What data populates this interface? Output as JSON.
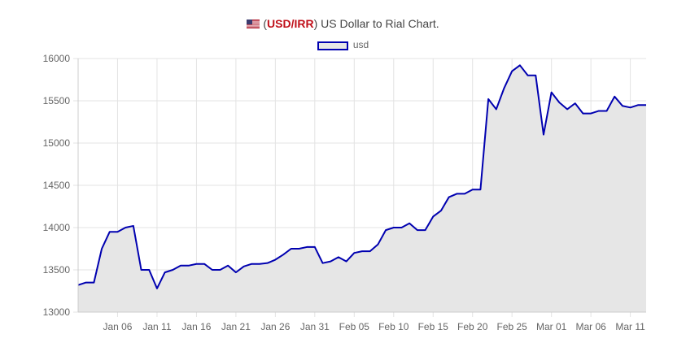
{
  "title": {
    "flag_icon": "us-flag-icon",
    "prefix": "(",
    "code": "USD/IRR",
    "suffix": ") US Dollar to Rial Chart."
  },
  "legend": {
    "label": "usd"
  },
  "colors": {
    "line": "#0000b0",
    "fill": "#e6e6e6",
    "grid": "#e3e3e3",
    "code": "#c0101a"
  },
  "chart_data": {
    "type": "area",
    "title": "(USD/IRR) US Dollar to Rial Chart.",
    "xlabel": "",
    "ylabel": "",
    "ylim": [
      13000,
      16000
    ],
    "yticks": [
      13000,
      13500,
      14000,
      14500,
      15000,
      15500,
      16000
    ],
    "xticks": [
      "Jan 06",
      "Jan 11",
      "Jan 16",
      "Jan 21",
      "Jan 26",
      "Jan 31",
      "Feb 05",
      "Feb 10",
      "Feb 15",
      "Feb 20",
      "Feb 25",
      "Mar 01",
      "Mar 06",
      "Mar 11"
    ],
    "grid": true,
    "legend_position": "top",
    "series": [
      {
        "name": "usd",
        "x": [
          "Jan 01",
          "Jan 02",
          "Jan 03",
          "Jan 04",
          "Jan 05",
          "Jan 06",
          "Jan 07",
          "Jan 08",
          "Jan 09",
          "Jan 10",
          "Jan 11",
          "Jan 12",
          "Jan 13",
          "Jan 14",
          "Jan 15",
          "Jan 16",
          "Jan 17",
          "Jan 18",
          "Jan 19",
          "Jan 20",
          "Jan 21",
          "Jan 22",
          "Jan 23",
          "Jan 24",
          "Jan 25",
          "Jan 26",
          "Jan 27",
          "Jan 28",
          "Jan 29",
          "Jan 30",
          "Jan 31",
          "Feb 01",
          "Feb 02",
          "Feb 03",
          "Feb 04",
          "Feb 05",
          "Feb 06",
          "Feb 07",
          "Feb 08",
          "Feb 09",
          "Feb 10",
          "Feb 11",
          "Feb 12",
          "Feb 13",
          "Feb 14",
          "Feb 15",
          "Feb 16",
          "Feb 17",
          "Feb 18",
          "Feb 19",
          "Feb 20",
          "Feb 21",
          "Feb 22",
          "Feb 23",
          "Feb 24",
          "Feb 25",
          "Feb 26",
          "Feb 27",
          "Feb 28",
          "Feb 29",
          "Mar 01",
          "Mar 02",
          "Mar 03",
          "Mar 04",
          "Mar 05",
          "Mar 06",
          "Mar 07",
          "Mar 08",
          "Mar 09",
          "Mar 10",
          "Mar 11",
          "Mar 12",
          "Mar 13"
        ],
        "values": [
          13320,
          13350,
          13350,
          13750,
          13950,
          13950,
          14000,
          14020,
          13500,
          13500,
          13280,
          13470,
          13500,
          13550,
          13550,
          13570,
          13570,
          13500,
          13500,
          13550,
          13470,
          13540,
          13570,
          13570,
          13580,
          13620,
          13680,
          13750,
          13750,
          13770,
          13770,
          13580,
          13600,
          13650,
          13600,
          13700,
          13720,
          13720,
          13800,
          13970,
          14000,
          14000,
          14050,
          13970,
          13970,
          14130,
          14200,
          14360,
          14400,
          14400,
          14450,
          14450,
          15520,
          15400,
          15650,
          15850,
          15920,
          15800,
          15800,
          15100,
          15600,
          15480,
          15400,
          15470,
          15350,
          15350,
          15380,
          15380,
          15550,
          15440,
          15420,
          15450,
          15450
        ]
      }
    ]
  }
}
